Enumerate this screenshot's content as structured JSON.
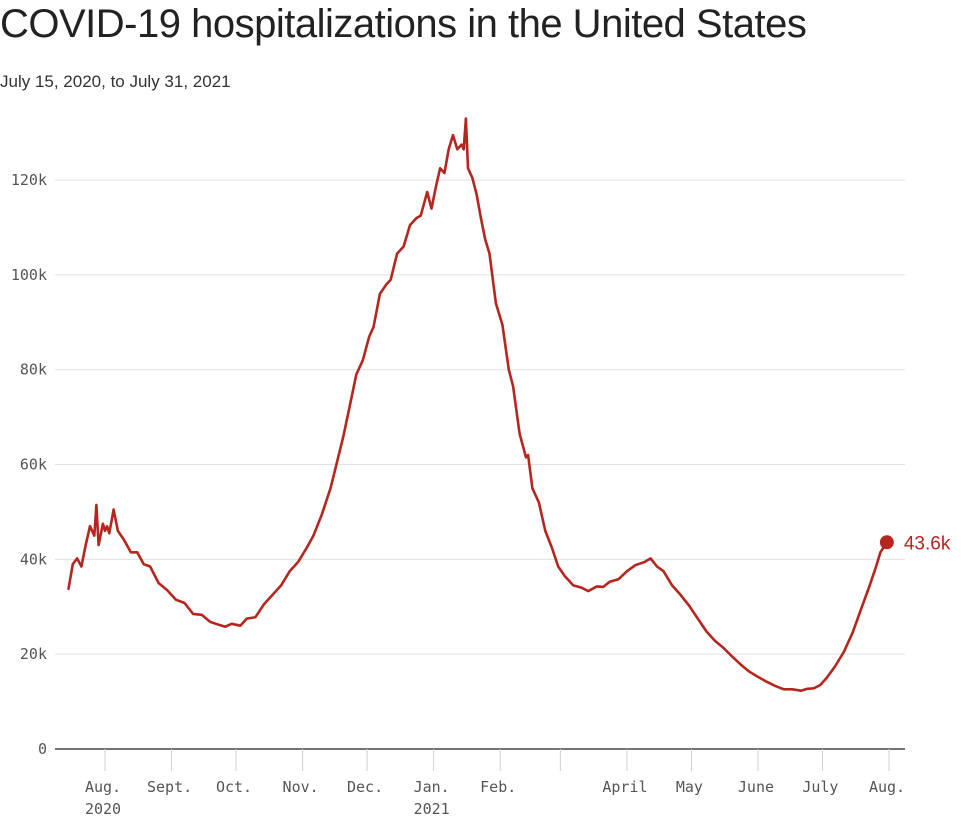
{
  "header": {
    "title": "COVID-19 hospitalizations in the United States",
    "subtitle": "July 15, 2020, to July 31, 2021"
  },
  "chart_data": {
    "type": "line",
    "title": "COVID-19 hospitalizations in the United States",
    "subtitle": "July 15, 2020, to July 31, 2021",
    "xlabel": "",
    "ylabel": "",
    "ylim": [
      0,
      130000
    ],
    "xlim": [
      "2020-07-15",
      "2021-07-31"
    ],
    "grid": true,
    "y_ticks": [
      {
        "value": 0,
        "label": "0"
      },
      {
        "value": 20000,
        "label": "20k"
      },
      {
        "value": 40000,
        "label": "40k"
      },
      {
        "value": 60000,
        "label": "60k"
      },
      {
        "value": 80000,
        "label": "80k"
      },
      {
        "value": 100000,
        "label": "100k"
      },
      {
        "value": 120000,
        "label": "120k"
      }
    ],
    "x_ticks": [
      {
        "date": "2020-08-01",
        "label": "Aug.",
        "sublabel": "2020"
      },
      {
        "date": "2020-09-01",
        "label": "Sept.",
        "sublabel": ""
      },
      {
        "date": "2020-10-01",
        "label": "Oct.",
        "sublabel": ""
      },
      {
        "date": "2020-11-01",
        "label": "Nov.",
        "sublabel": ""
      },
      {
        "date": "2020-12-01",
        "label": "Dec.",
        "sublabel": ""
      },
      {
        "date": "2021-01-01",
        "label": "Jan.",
        "sublabel": "2021"
      },
      {
        "date": "2021-02-01",
        "label": "Feb.",
        "sublabel": ""
      },
      {
        "date": "2021-03-01",
        "label": "",
        "sublabel": ""
      },
      {
        "date": "2021-04-01",
        "label": "April",
        "sublabel": ""
      },
      {
        "date": "2021-05-01",
        "label": "May",
        "sublabel": ""
      },
      {
        "date": "2021-06-01",
        "label": "June",
        "sublabel": ""
      },
      {
        "date": "2021-07-01",
        "label": "July",
        "sublabel": ""
      },
      {
        "date": "2021-08-01",
        "label": "Aug.",
        "sublabel": ""
      }
    ],
    "series": [
      {
        "color": "#b5261e",
        "end_label": "43.6k",
        "points": [
          [
            "2020-07-15",
            33800
          ],
          [
            "2020-07-17",
            39000
          ],
          [
            "2020-07-19",
            40200
          ],
          [
            "2020-07-21",
            38500
          ],
          [
            "2020-07-23",
            43000
          ],
          [
            "2020-07-25",
            47000
          ],
          [
            "2020-07-27",
            45000
          ],
          [
            "2020-07-28",
            51500
          ],
          [
            "2020-07-29",
            43000
          ],
          [
            "2020-07-31",
            47500
          ],
          [
            "2020-08-01",
            46000
          ],
          [
            "2020-08-02",
            47000
          ],
          [
            "2020-08-03",
            45500
          ],
          [
            "2020-08-05",
            50500
          ],
          [
            "2020-08-07",
            46000
          ],
          [
            "2020-08-10",
            44000
          ],
          [
            "2020-08-13",
            41500
          ],
          [
            "2020-08-16",
            41500
          ],
          [
            "2020-08-19",
            39000
          ],
          [
            "2020-08-22",
            38500
          ],
          [
            "2020-08-26",
            35000
          ],
          [
            "2020-08-30",
            33500
          ],
          [
            "2020-09-03",
            31500
          ],
          [
            "2020-09-07",
            30800
          ],
          [
            "2020-09-11",
            28500
          ],
          [
            "2020-09-15",
            28300
          ],
          [
            "2020-09-19",
            26800
          ],
          [
            "2020-09-23",
            26200
          ],
          [
            "2020-09-26",
            25800
          ],
          [
            "2020-09-29",
            26400
          ],
          [
            "2020-10-03",
            26000
          ],
          [
            "2020-10-06",
            27500
          ],
          [
            "2020-10-10",
            27800
          ],
          [
            "2020-10-14",
            30500
          ],
          [
            "2020-10-18",
            32500
          ],
          [
            "2020-10-22",
            34500
          ],
          [
            "2020-10-26",
            37500
          ],
          [
            "2020-10-30",
            39500
          ],
          [
            "2020-11-03",
            42500
          ],
          [
            "2020-11-06",
            45000
          ],
          [
            "2020-11-10",
            49500
          ],
          [
            "2020-11-14",
            55000
          ],
          [
            "2020-11-17",
            60500
          ],
          [
            "2020-11-20",
            66000
          ],
          [
            "2020-11-23",
            72500
          ],
          [
            "2020-11-26",
            79000
          ],
          [
            "2020-11-29",
            82000
          ],
          [
            "2020-12-02",
            87000
          ],
          [
            "2020-12-04",
            89000
          ],
          [
            "2020-12-07",
            96000
          ],
          [
            "2020-12-10",
            98000
          ],
          [
            "2020-12-12",
            99000
          ],
          [
            "2020-12-15",
            104500
          ],
          [
            "2020-12-18",
            106000
          ],
          [
            "2020-12-21",
            110500
          ],
          [
            "2020-12-24",
            112000
          ],
          [
            "2020-12-26",
            112500
          ],
          [
            "2020-12-29",
            117500
          ],
          [
            "2020-12-31",
            114000
          ],
          [
            "2021-01-02",
            118500
          ],
          [
            "2021-01-04",
            122500
          ],
          [
            "2021-01-06",
            121500
          ],
          [
            "2021-01-08",
            126500
          ],
          [
            "2021-01-10",
            129500
          ],
          [
            "2021-01-12",
            126500
          ],
          [
            "2021-01-14",
            127500
          ],
          [
            "2021-01-15",
            126500
          ],
          [
            "2021-01-16",
            133000
          ],
          [
            "2021-01-17",
            122500
          ],
          [
            "2021-01-19",
            120500
          ],
          [
            "2021-01-21",
            117000
          ],
          [
            "2021-01-23",
            112000
          ],
          [
            "2021-01-25",
            107500
          ],
          [
            "2021-01-27",
            104500
          ],
          [
            "2021-01-30",
            94000
          ],
          [
            "2021-02-02",
            89500
          ],
          [
            "2021-02-05",
            80000
          ],
          [
            "2021-02-07",
            76500
          ],
          [
            "2021-02-10",
            66500
          ],
          [
            "2021-02-13",
            61500
          ],
          [
            "2021-02-14",
            62000
          ],
          [
            "2021-02-16",
            55000
          ],
          [
            "2021-02-19",
            52000
          ],
          [
            "2021-02-22",
            46000
          ],
          [
            "2021-02-25",
            42500
          ],
          [
            "2021-02-28",
            38500
          ],
          [
            "2021-03-03",
            36500
          ],
          [
            "2021-03-07",
            34500
          ],
          [
            "2021-03-11",
            34000
          ],
          [
            "2021-03-14",
            33300
          ],
          [
            "2021-03-18",
            34300
          ],
          [
            "2021-03-21",
            34200
          ],
          [
            "2021-03-24",
            35300
          ],
          [
            "2021-03-28",
            35800
          ],
          [
            "2021-04-01",
            37500
          ],
          [
            "2021-04-05",
            38800
          ],
          [
            "2021-04-09",
            39400
          ],
          [
            "2021-04-12",
            40200
          ],
          [
            "2021-04-15",
            38500
          ],
          [
            "2021-04-18",
            37500
          ],
          [
            "2021-04-22",
            34500
          ],
          [
            "2021-04-26",
            32500
          ],
          [
            "2021-04-30",
            30200
          ],
          [
            "2021-05-04",
            27500
          ],
          [
            "2021-05-08",
            24800
          ],
          [
            "2021-05-12",
            22800
          ],
          [
            "2021-05-16",
            21300
          ],
          [
            "2021-05-20",
            19500
          ],
          [
            "2021-05-24",
            17800
          ],
          [
            "2021-05-28",
            16300
          ],
          [
            "2021-06-01",
            15200
          ],
          [
            "2021-06-05",
            14200
          ],
          [
            "2021-06-09",
            13300
          ],
          [
            "2021-06-13",
            12600
          ],
          [
            "2021-06-17",
            12600
          ],
          [
            "2021-06-21",
            12300
          ],
          [
            "2021-06-24",
            12700
          ],
          [
            "2021-06-27",
            12800
          ],
          [
            "2021-06-30",
            13500
          ],
          [
            "2021-07-03",
            15000
          ],
          [
            "2021-07-07",
            17500
          ],
          [
            "2021-07-11",
            20500
          ],
          [
            "2021-07-15",
            24500
          ],
          [
            "2021-07-19",
            29500
          ],
          [
            "2021-07-23",
            34500
          ],
          [
            "2021-07-26",
            38500
          ],
          [
            "2021-07-28",
            41500
          ],
          [
            "2021-07-31",
            43600
          ]
        ]
      }
    ]
  }
}
